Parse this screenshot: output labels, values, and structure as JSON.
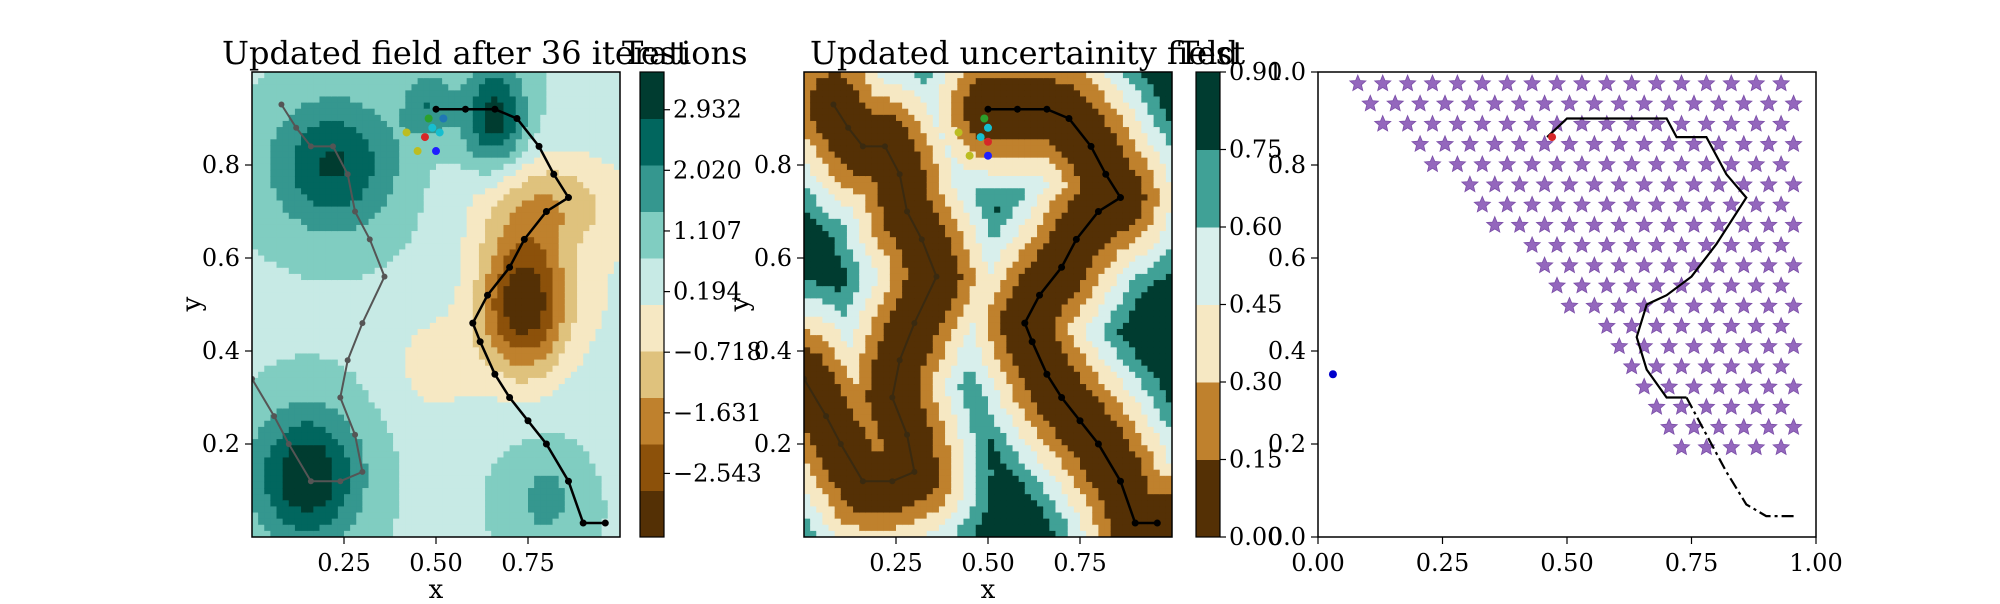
{
  "chart_data": [
    {
      "type": "contour",
      "title": "Updated field after 36 iterations",
      "xlabel": "x",
      "ylabel": "y",
      "xlim": [
        0.0,
        1.0
      ],
      "ylim": [
        0.0,
        1.0
      ],
      "xticks": [
        {
          "v": 0.25,
          "label": "0.25"
        },
        {
          "v": 0.5,
          "label": "0.50"
        },
        {
          "v": 0.75,
          "label": "0.75"
        }
      ],
      "yticks": [
        {
          "v": 0.2,
          "label": "0.2"
        },
        {
          "v": 0.4,
          "label": "0.4"
        },
        {
          "v": 0.6,
          "label": "0.6"
        },
        {
          "v": 0.8,
          "label": "0.8"
        }
      ],
      "colorbar": {
        "label": "Test",
        "colors": [
          "#543005",
          "#8c510a",
          "#bf812d",
          "#dfc27d",
          "#f6e8c3",
          "#c7eae5",
          "#80cdc1",
          "#35978f",
          "#01665e",
          "#003c30"
        ],
        "tick_labels": [
          {
            "v": -2.543,
            "label": "−2.543"
          },
          {
            "v": -1.631,
            "label": "−1.631"
          },
          {
            "v": -0.718,
            "label": "−0.718"
          },
          {
            "v": 0.194,
            "label": "0.194"
          },
          {
            "v": 1.107,
            "label": "1.107"
          },
          {
            "v": 2.02,
            "label": "2.020"
          },
          {
            "v": 2.932,
            "label": "2.932"
          }
        ],
        "range": [
          -3.5,
          3.5
        ]
      },
      "path_black": [
        [
          0.96,
          0.03
        ],
        [
          0.9,
          0.03
        ],
        [
          0.86,
          0.12
        ],
        [
          0.8,
          0.2
        ],
        [
          0.75,
          0.25
        ],
        [
          0.7,
          0.3
        ],
        [
          0.66,
          0.35
        ],
        [
          0.62,
          0.42
        ],
        [
          0.6,
          0.46
        ],
        [
          0.64,
          0.52
        ],
        [
          0.7,
          0.58
        ],
        [
          0.74,
          0.64
        ],
        [
          0.8,
          0.7
        ],
        [
          0.86,
          0.73
        ],
        [
          0.82,
          0.78
        ],
        [
          0.78,
          0.84
        ],
        [
          0.72,
          0.9
        ],
        [
          0.66,
          0.92
        ],
        [
          0.58,
          0.92
        ],
        [
          0.5,
          0.92
        ]
      ],
      "path_gray": [
        [
          0.0,
          0.34
        ],
        [
          0.06,
          0.26
        ],
        [
          0.1,
          0.2
        ],
        [
          0.16,
          0.12
        ],
        [
          0.24,
          0.12
        ],
        [
          0.3,
          0.14
        ],
        [
          0.28,
          0.22
        ],
        [
          0.24,
          0.3
        ],
        [
          0.26,
          0.38
        ],
        [
          0.3,
          0.46
        ],
        [
          0.36,
          0.56
        ],
        [
          0.32,
          0.64
        ],
        [
          0.28,
          0.7
        ],
        [
          0.26,
          0.78
        ],
        [
          0.22,
          0.84
        ],
        [
          0.16,
          0.84
        ],
        [
          0.12,
          0.88
        ],
        [
          0.08,
          0.93
        ]
      ],
      "markers": [
        {
          "x": 0.47,
          "y": 0.86,
          "color": "#d62728"
        },
        {
          "x": 0.49,
          "y": 0.88,
          "color": "#17becf"
        },
        {
          "x": 0.51,
          "y": 0.87,
          "color": "#17becf"
        },
        {
          "x": 0.48,
          "y": 0.9,
          "color": "#2ca02c"
        },
        {
          "x": 0.52,
          "y": 0.9,
          "color": "#1f77b4"
        },
        {
          "x": 0.42,
          "y": 0.87,
          "color": "#bcbd22"
        },
        {
          "x": 0.45,
          "y": 0.83,
          "color": "#bcbd22"
        },
        {
          "x": 0.5,
          "y": 0.83,
          "color": "#1f1fff"
        }
      ]
    },
    {
      "type": "contour",
      "title": "Updated uncertainity field",
      "xlabel": "x",
      "ylabel": "y",
      "xlim": [
        0.0,
        1.0
      ],
      "ylim": [
        0.0,
        1.0
      ],
      "xticks": [
        {
          "v": 0.25,
          "label": "0.25"
        },
        {
          "v": 0.5,
          "label": "0.50"
        },
        {
          "v": 0.75,
          "label": "0.75"
        }
      ],
      "yticks": [
        {
          "v": 0.2,
          "label": "0.2"
        },
        {
          "v": 0.4,
          "label": "0.4"
        },
        {
          "v": 0.6,
          "label": "0.6"
        },
        {
          "v": 0.8,
          "label": "0.8"
        }
      ],
      "colorbar": {
        "label": "Test",
        "colors": [
          "#543005",
          "#bf812d",
          "#f6e8c3",
          "#d8efec",
          "#40a196",
          "#003c30"
        ],
        "tick_labels": [
          {
            "v": 0.0,
            "label": "0.00"
          },
          {
            "v": 0.15,
            "label": "0.15"
          },
          {
            "v": 0.3,
            "label": "0.30"
          },
          {
            "v": 0.45,
            "label": "0.45"
          },
          {
            "v": 0.6,
            "label": "0.60"
          },
          {
            "v": 0.75,
            "label": "0.75"
          },
          {
            "v": 0.9,
            "label": "0.90"
          }
        ],
        "range": [
          0.0,
          0.9
        ]
      },
      "path_black": [
        [
          0.96,
          0.03
        ],
        [
          0.9,
          0.03
        ],
        [
          0.86,
          0.12
        ],
        [
          0.8,
          0.2
        ],
        [
          0.75,
          0.25
        ],
        [
          0.7,
          0.3
        ],
        [
          0.66,
          0.35
        ],
        [
          0.62,
          0.42
        ],
        [
          0.6,
          0.46
        ],
        [
          0.64,
          0.52
        ],
        [
          0.7,
          0.58
        ],
        [
          0.74,
          0.64
        ],
        [
          0.8,
          0.7
        ],
        [
          0.86,
          0.73
        ],
        [
          0.82,
          0.78
        ],
        [
          0.78,
          0.84
        ],
        [
          0.72,
          0.9
        ],
        [
          0.66,
          0.92
        ],
        [
          0.58,
          0.92
        ],
        [
          0.5,
          0.92
        ]
      ],
      "path_gray": [
        [
          0.0,
          0.34
        ],
        [
          0.06,
          0.26
        ],
        [
          0.1,
          0.2
        ],
        [
          0.16,
          0.12
        ],
        [
          0.24,
          0.12
        ],
        [
          0.3,
          0.14
        ],
        [
          0.28,
          0.22
        ],
        [
          0.24,
          0.3
        ],
        [
          0.26,
          0.38
        ],
        [
          0.3,
          0.46
        ],
        [
          0.36,
          0.56
        ],
        [
          0.32,
          0.64
        ],
        [
          0.28,
          0.7
        ],
        [
          0.26,
          0.78
        ],
        [
          0.22,
          0.84
        ],
        [
          0.16,
          0.84
        ],
        [
          0.12,
          0.88
        ],
        [
          0.08,
          0.93
        ]
      ],
      "markers": [
        {
          "x": 0.49,
          "y": 0.9,
          "color": "#2ca02c"
        },
        {
          "x": 0.5,
          "y": 0.88,
          "color": "#17becf"
        },
        {
          "x": 0.48,
          "y": 0.86,
          "color": "#17becf"
        },
        {
          "x": 0.5,
          "y": 0.85,
          "color": "#d62728"
        },
        {
          "x": 0.42,
          "y": 0.87,
          "color": "#bcbd22"
        },
        {
          "x": 0.45,
          "y": 0.82,
          "color": "#bcbd22"
        },
        {
          "x": 0.5,
          "y": 0.82,
          "color": "#1f1fff"
        }
      ]
    },
    {
      "type": "scatter",
      "xlim": [
        0.0,
        1.0
      ],
      "ylim": [
        0.0,
        1.0
      ],
      "xticks": [
        {
          "v": 0.0,
          "label": "0.00"
        },
        {
          "v": 0.25,
          "label": "0.25"
        },
        {
          "v": 0.5,
          "label": "0.50"
        },
        {
          "v": 0.75,
          "label": "0.75"
        },
        {
          "v": 1.0,
          "label": "1.00"
        }
      ],
      "yticks": [
        {
          "v": 0.0,
          "label": "0.0"
        },
        {
          "v": 0.2,
          "label": "0.2"
        },
        {
          "v": 0.4,
          "label": "0.4"
        },
        {
          "v": 0.6,
          "label": "0.6"
        },
        {
          "v": 0.8,
          "label": "0.8"
        },
        {
          "v": 1.0,
          "label": "1.0"
        }
      ],
      "star_color": "#9467bd",
      "grid_step": 0.05,
      "star_region_left_edge": [
        [
          0.83,
          0.03
        ],
        [
          0.78,
          0.1
        ],
        [
          0.65,
          0.3
        ],
        [
          0.5,
          0.5
        ],
        [
          0.28,
          0.75
        ],
        [
          0.06,
          0.94
        ]
      ],
      "star_x_range": [
        0.03,
        0.97
      ],
      "star_y_range": [
        0.15,
        1.0
      ],
      "path_solid": [
        [
          0.74,
          0.3
        ],
        [
          0.7,
          0.3
        ],
        [
          0.66,
          0.36
        ],
        [
          0.64,
          0.43
        ],
        [
          0.66,
          0.5
        ],
        [
          0.7,
          0.52
        ],
        [
          0.75,
          0.56
        ],
        [
          0.8,
          0.63
        ],
        [
          0.86,
          0.73
        ],
        [
          0.82,
          0.78
        ],
        [
          0.78,
          0.86
        ],
        [
          0.72,
          0.86
        ],
        [
          0.7,
          0.9
        ],
        [
          0.6,
          0.9
        ],
        [
          0.5,
          0.9
        ],
        [
          0.46,
          0.86
        ]
      ],
      "path_dashdot": [
        [
          0.74,
          0.3
        ],
        [
          0.78,
          0.22
        ],
        [
          0.82,
          0.14
        ],
        [
          0.86,
          0.07
        ],
        [
          0.9,
          0.045
        ],
        [
          0.96,
          0.045
        ]
      ],
      "markers": [
        {
          "x": 0.47,
          "y": 0.86,
          "color": "#d62728"
        },
        {
          "x": 0.03,
          "y": 0.35,
          "color": "#0000cc"
        }
      ]
    }
  ]
}
